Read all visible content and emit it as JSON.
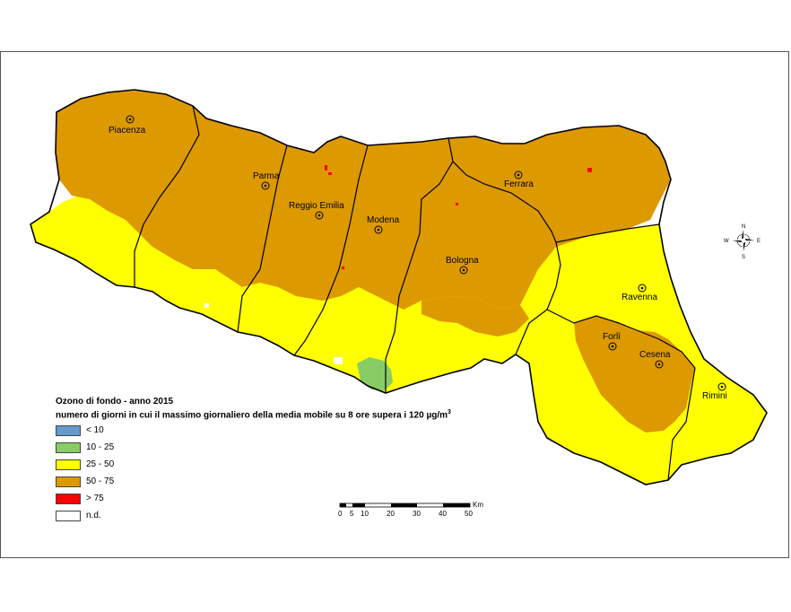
{
  "map": {
    "colors": {
      "c_lt10": "#6699cc",
      "c_10_25": "#88cc66",
      "c_25_50": "#ffff00",
      "c_50_75": "#dd9900",
      "c_gt75": "#ff0000",
      "c_nd": "#ffffff",
      "boundary": "#000000"
    },
    "cities": [
      {
        "name": "Piacenza"
      },
      {
        "name": "Parma"
      },
      {
        "name": "Reggio Emilia"
      },
      {
        "name": "Modena"
      },
      {
        "name": "Ferrara"
      },
      {
        "name": "Bologna"
      },
      {
        "name": "Ravenna"
      },
      {
        "name": "Forlì"
      },
      {
        "name": "Cesena"
      },
      {
        "name": "Rimini"
      }
    ]
  },
  "legend": {
    "title": "Ozono di fondo - anno 2015",
    "subtitle": "numero di giorni in cui il massimo giornaliero della media mobile su 8 ore supera i 120 µg/m",
    "subtitle_sup": "3",
    "items": [
      {
        "label": "< 10",
        "color": "#6699cc"
      },
      {
        "label": "10 - 25",
        "color": "#88cc66"
      },
      {
        "label": "25 - 50",
        "color": "#ffff00"
      },
      {
        "label": "50 - 75",
        "color": "#dd9900"
      },
      {
        "label": "> 75",
        "color": "#ff0000"
      },
      {
        "label": "n.d.",
        "color": "#ffffff"
      }
    ]
  },
  "scale_bar": {
    "unit": "Km",
    "ticks": [
      "0",
      "5",
      "10",
      "20",
      "30",
      "40",
      "50"
    ]
  },
  "compass": {
    "north": "N",
    "south": "S",
    "east": "E",
    "west": "W"
  }
}
